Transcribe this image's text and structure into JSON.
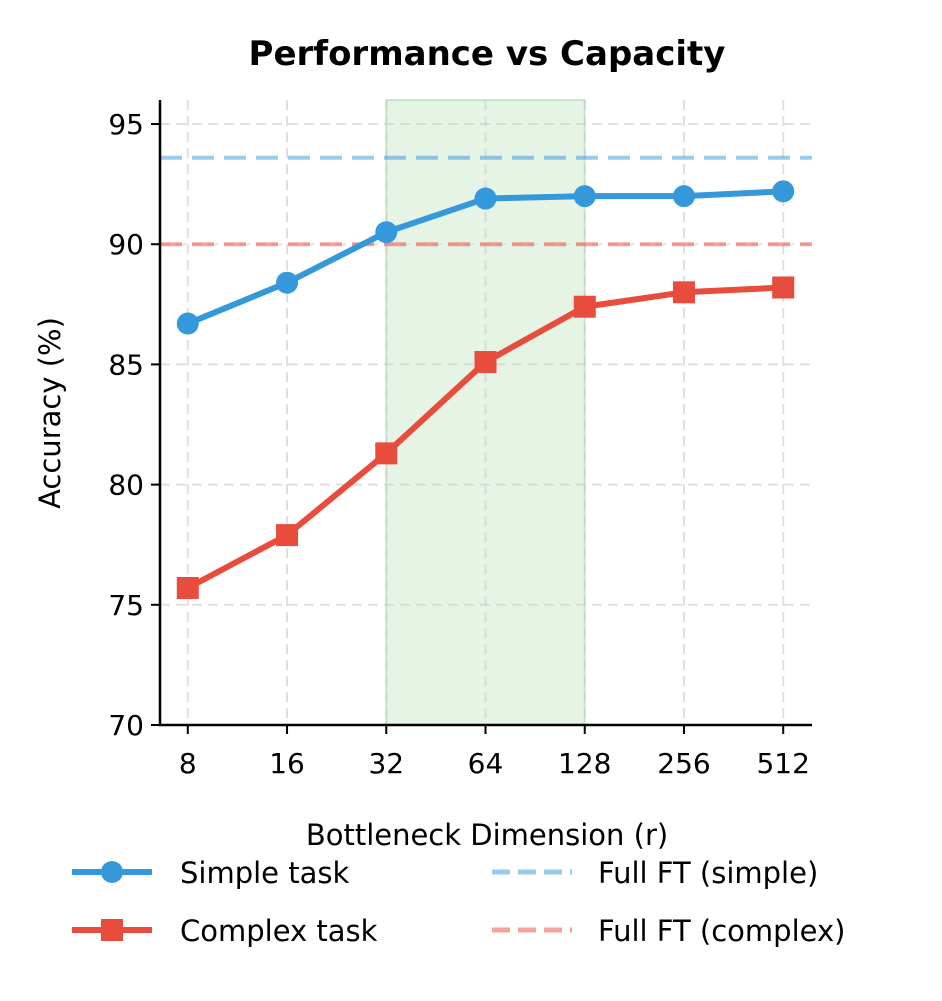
{
  "chart_data": {
    "type": "line",
    "title": "Performance vs Capacity",
    "xlabel": "Bottleneck Dimension (r)",
    "ylabel": "Accuracy (%)",
    "x_scale": "log2",
    "x": [
      8,
      16,
      32,
      64,
      128,
      256,
      512
    ],
    "x_tick_labels": [
      "8",
      "16",
      "32",
      "64",
      "128",
      "256",
      "512"
    ],
    "ylim": [
      70,
      96
    ],
    "y_ticks": [
      70,
      75,
      80,
      85,
      90,
      95
    ],
    "y_tick_labels": [
      "70",
      "75",
      "80",
      "85",
      "90",
      "95"
    ],
    "grid": true,
    "series": [
      {
        "name": "Simple task",
        "values": [
          86.7,
          88.4,
          90.5,
          91.9,
          92.0,
          92.0,
          92.2
        ],
        "color": "#3498db",
        "marker": "circle"
      },
      {
        "name": "Complex task",
        "values": [
          75.7,
          77.9,
          81.3,
          85.1,
          87.4,
          88.0,
          88.2
        ],
        "color": "#e74c3c",
        "marker": "square"
      }
    ],
    "reference_lines": [
      {
        "name": "Full FT (simple)",
        "y": 93.6,
        "color": "#3498db",
        "style": "dashed"
      },
      {
        "name": "Full FT (complex)",
        "y": 90.0,
        "color": "#e74c3c",
        "style": "dashed"
      }
    ],
    "shaded_region": {
      "x_from": 32,
      "x_to": 128,
      "color": "#4caf50"
    },
    "legend_placement": "bottom"
  }
}
